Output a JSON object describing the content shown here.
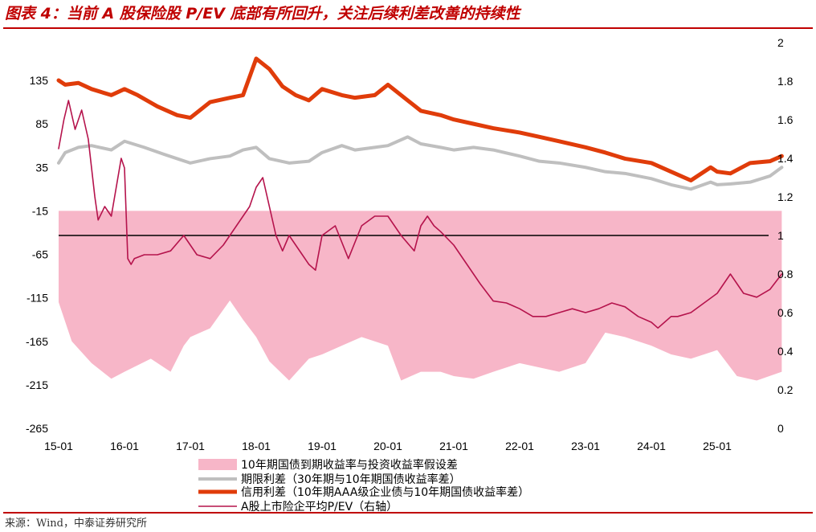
{
  "title": "图表 4：当前 A 股保险股 P/EV 底部有所回升，关注后续利差改善的持续性",
  "source": "来源：Wind，中泰证券研究所",
  "chart_data": {
    "type": "line",
    "x_ticks": [
      "15-01",
      "16-01",
      "17-01",
      "18-01",
      "19-01",
      "20-01",
      "21-01",
      "22-01",
      "23-01",
      "24-01",
      "25-01"
    ],
    "y_left": {
      "ticks": [
        135,
        85,
        35,
        -15,
        -65,
        -115,
        -165,
        -215,
        -265
      ],
      "range": [
        -265,
        135
      ]
    },
    "y_right": {
      "ticks": [
        2,
        1.8,
        1.6,
        1.4,
        1.2,
        1,
        0.8,
        0.6,
        0.4,
        0.2,
        0
      ],
      "range": [
        0,
        2
      ]
    },
    "reference_line_right": 1,
    "series": [
      {
        "name": "10年期国债到期收益率与投资收益率假设差",
        "kind": "area",
        "axis": "left",
        "color": "#f7b6c8",
        "baseline": -15,
        "x": [
          0,
          0.2,
          0.5,
          0.8,
          1,
          1.4,
          1.7,
          1.9,
          2,
          2.3,
          2.6,
          2.8,
          3,
          3.2,
          3.5,
          3.8,
          4,
          4.3,
          4.6,
          5,
          5.2,
          5.5,
          5.8,
          6,
          6.3,
          6.6,
          7,
          7.3,
          7.6,
          8,
          8.3,
          8.6,
          9,
          9.3,
          9.6,
          10,
          10.3,
          10.6,
          10.98
        ],
        "values": [
          -120,
          -165,
          -190,
          -208,
          -200,
          -185,
          -200,
          -170,
          -160,
          -150,
          -118,
          -140,
          -160,
          -188,
          -210,
          -185,
          -180,
          -170,
          -160,
          -170,
          -210,
          -200,
          -200,
          -205,
          -208,
          -200,
          -190,
          -195,
          -200,
          -190,
          -155,
          -160,
          -170,
          -180,
          -185,
          -175,
          -205,
          -210,
          -200
        ]
      },
      {
        "name": "期限利差（30年期与10年期国债收益率差）",
        "kind": "line",
        "axis": "left",
        "color": "#bfbfbf",
        "x": [
          0,
          0.1,
          0.3,
          0.5,
          0.8,
          1,
          1.3,
          1.6,
          1.8,
          2,
          2.3,
          2.6,
          2.8,
          3,
          3.2,
          3.5,
          3.8,
          4,
          4.3,
          4.5,
          4.8,
          5,
          5.3,
          5.5,
          5.8,
          6,
          6.3,
          6.6,
          7,
          7.3,
          7.6,
          8,
          8.3,
          8.6,
          9,
          9.3,
          9.6,
          9.9,
          10,
          10.2,
          10.5,
          10.8,
          10.98
        ],
        "values": [
          40,
          52,
          58,
          60,
          55,
          65,
          58,
          50,
          45,
          40,
          45,
          48,
          55,
          58,
          45,
          40,
          42,
          52,
          60,
          55,
          58,
          60,
          70,
          62,
          58,
          55,
          58,
          55,
          48,
          42,
          40,
          35,
          30,
          28,
          22,
          15,
          10,
          18,
          15,
          16,
          18,
          25,
          35
        ]
      },
      {
        "name": "信用利差（10年期AAA级企业债与10年期国债收益率差）",
        "kind": "line",
        "axis": "left",
        "color": "#e03c0a",
        "x": [
          0,
          0.1,
          0.3,
          0.5,
          0.8,
          1,
          1.2,
          1.5,
          1.8,
          2,
          2.3,
          2.6,
          2.8,
          3,
          3.2,
          3.4,
          3.6,
          3.8,
          4,
          4.3,
          4.5,
          4.8,
          5,
          5.3,
          5.5,
          5.8,
          6,
          6.3,
          6.6,
          7,
          7.3,
          7.6,
          8,
          8.3,
          8.6,
          9,
          9.3,
          9.6,
          9.9,
          10,
          10.2,
          10.5,
          10.8,
          10.98
        ],
        "values": [
          135,
          130,
          132,
          125,
          118,
          125,
          118,
          105,
          95,
          92,
          110,
          115,
          118,
          160,
          148,
          128,
          118,
          112,
          125,
          118,
          115,
          118,
          130,
          112,
          100,
          95,
          90,
          85,
          80,
          75,
          70,
          65,
          58,
          52,
          45,
          40,
          30,
          20,
          35,
          30,
          28,
          40,
          42,
          48
        ]
      },
      {
        "name": "A股上市险企平均P/EV（右轴）",
        "kind": "line",
        "axis": "right",
        "color": "#b5134c",
        "x": [
          0,
          0.08,
          0.15,
          0.25,
          0.35,
          0.45,
          0.55,
          0.6,
          0.7,
          0.8,
          0.9,
          0.95,
          1,
          1.05,
          1.1,
          1.15,
          1.3,
          1.5,
          1.7,
          1.9,
          2.1,
          2.3,
          2.5,
          2.7,
          2.9,
          3.0,
          3.1,
          3.2,
          3.3,
          3.4,
          3.5,
          3.6,
          3.7,
          3.8,
          3.9,
          4.0,
          4.2,
          4.4,
          4.6,
          4.8,
          5.0,
          5.2,
          5.4,
          5.5,
          5.6,
          5.7,
          5.8,
          6.0,
          6.2,
          6.4,
          6.6,
          6.8,
          7.0,
          7.2,
          7.4,
          7.6,
          7.8,
          8.0,
          8.2,
          8.4,
          8.6,
          8.8,
          9.0,
          9.1,
          9.2,
          9.3,
          9.4,
          9.6,
          9.8,
          10.0,
          10.2,
          10.4,
          10.6,
          10.8,
          10.98
        ],
        "values": [
          1.45,
          1.6,
          1.7,
          1.55,
          1.65,
          1.5,
          1.2,
          1.08,
          1.15,
          1.1,
          1.3,
          1.4,
          1.35,
          0.88,
          0.85,
          0.88,
          0.9,
          0.9,
          0.92,
          1.0,
          0.9,
          0.88,
          0.95,
          1.05,
          1.15,
          1.25,
          1.3,
          1.15,
          1.0,
          0.92,
          1.0,
          0.95,
          0.9,
          0.85,
          0.82,
          1.0,
          1.05,
          0.88,
          1.05,
          1.1,
          1.1,
          1.0,
          0.92,
          1.05,
          1.1,
          1.05,
          1.02,
          0.95,
          0.85,
          0.75,
          0.66,
          0.65,
          0.62,
          0.58,
          0.58,
          0.6,
          0.62,
          0.6,
          0.62,
          0.65,
          0.63,
          0.58,
          0.55,
          0.52,
          0.55,
          0.58,
          0.58,
          0.6,
          0.65,
          0.7,
          0.8,
          0.7,
          0.68,
          0.72,
          0.8
        ]
      }
    ],
    "legend_placement": "bottom"
  }
}
